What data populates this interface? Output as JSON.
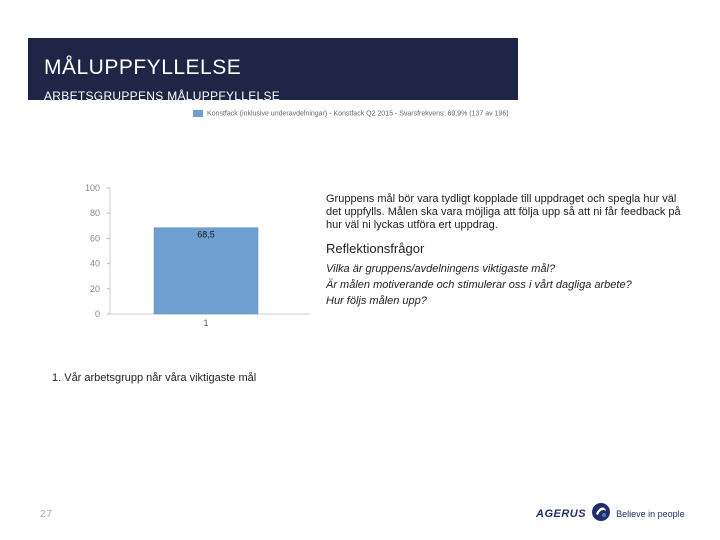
{
  "slide": {
    "title": "MÅLUPPFYLLELSE",
    "subtitle": "ARBETSGRUPPENS MÅLUPPFYLLELSE",
    "page_number": "27"
  },
  "legend": {
    "label": "Konstfack (inklusive underavdelningar) - Konstfack Q2 2015 - Svarsfrekvens: 69,9% (137 av 196)",
    "color": "#6f9fd0"
  },
  "chart_data": {
    "type": "bar",
    "categories": [
      "1"
    ],
    "values": [
      68.5
    ],
    "value_labels": [
      "68,5"
    ],
    "ylim": [
      0,
      100
    ],
    "yticks": [
      0,
      20,
      40,
      60,
      80,
      100
    ],
    "grid": false,
    "bar_color": "#6f9fd0",
    "caption": "1. Vår arbetsgrupp når våra viktigaste mål"
  },
  "text": {
    "intro": "Gruppens mål bör vara tydligt kopplade till uppdraget och spegla hur väl det uppfylls. Målen ska vara möjliga att följa upp så att ni får feedback på hur väl ni lyckas utföra ert uppdrag.",
    "heading": "Reflektionsfrågor",
    "questions": [
      "Vilka är gruppens/avdelningens viktigaste mål?",
      "Är målen motiverande och stimulerar oss i vårt dagliga arbete?",
      "Hur följs målen upp?"
    ]
  },
  "logo": {
    "brand": "AGERUS",
    "tagline": "Believe in people",
    "icon": "swirl-logo-icon"
  }
}
